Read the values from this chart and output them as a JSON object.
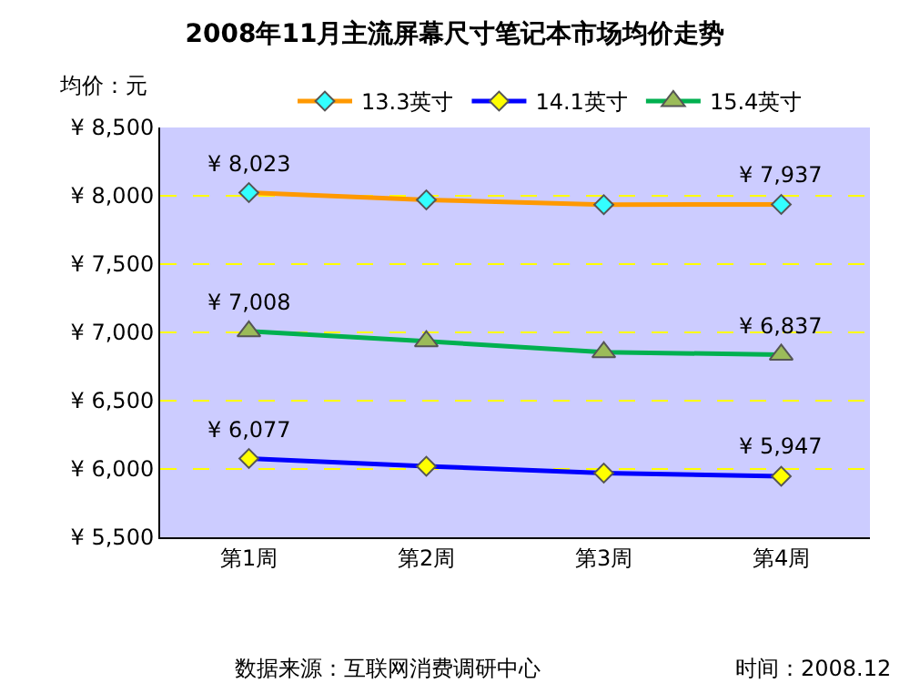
{
  "chart_data": {
    "type": "line",
    "title": "2008年11月主流屏幕尺寸笔记本市场均价走势",
    "ylabel": "均价：元",
    "categories": [
      "第1周",
      "第2周",
      "第3周",
      "第4周"
    ],
    "series": [
      {
        "name": "13.3英寸",
        "color": "#ff9900",
        "colors": [
          "#33ffff",
          "#33ffff",
          "#33ffff",
          "#33ffff"
        ],
        "marker": "diamond",
        "values": [
          8023,
          7970,
          7935,
          7937
        ],
        "value_labels": [
          "¥ 8,023",
          null,
          null,
          "¥ 7,937"
        ]
      },
      {
        "name": "14.1英寸",
        "color": "#0000ff",
        "colors": [
          "#ffff00",
          "#ffff00",
          "#ffff00",
          "#ffff00"
        ],
        "marker": "diamond",
        "values": [
          6077,
          6020,
          5970,
          5947
        ],
        "value_labels": [
          "¥ 6,077",
          null,
          null,
          "¥ 5,947"
        ]
      },
      {
        "name": "15.4英寸",
        "color": "#00b050",
        "colors": [
          "#9bbb59",
          "#9bbb59",
          "#9bbb59",
          "#9bbb59"
        ],
        "marker": "triangle",
        "values": [
          7008,
          6935,
          6855,
          6837
        ],
        "value_labels": [
          "¥ 7,008",
          null,
          null,
          "¥ 6,837"
        ]
      }
    ],
    "ylim": [
      5500,
      8500
    ],
    "yticks": [
      {
        "value": 5500,
        "label": "¥ 5,500"
      },
      {
        "value": 6000,
        "label": "¥ 6,000"
      },
      {
        "value": 6500,
        "label": "¥ 6,500"
      },
      {
        "value": 7000,
        "label": "¥ 7,000"
      },
      {
        "value": 7500,
        "label": "¥ 7,500"
      },
      {
        "value": 8000,
        "label": "¥ 8,000"
      },
      {
        "value": 8500,
        "label": "¥ 8,500"
      }
    ],
    "grid": "y",
    "legend": "top",
    "line_style": "solid",
    "annotations": [
      "数据来源：互联网消费调研中心",
      "时间：2008.12"
    ]
  }
}
